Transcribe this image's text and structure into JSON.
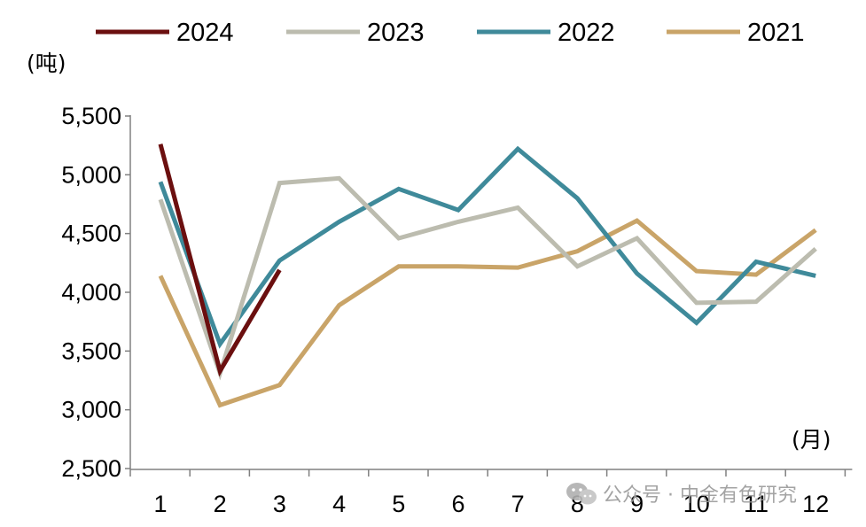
{
  "chart_data": {
    "type": "line",
    "title": "",
    "ylabel": "(吨)",
    "xlabel": "(月)",
    "x": [
      1,
      2,
      3,
      4,
      5,
      6,
      7,
      8,
      9,
      10,
      11,
      12
    ],
    "ylim": [
      2500,
      5500
    ],
    "yticks": [
      2500,
      3000,
      3500,
      4000,
      4500,
      5000,
      5500
    ],
    "ytick_labels": [
      "2,500",
      "3,000",
      "3,500",
      "4,000",
      "4,500",
      "5,000",
      "5,500"
    ],
    "grid": false,
    "legend_position": "top",
    "series": [
      {
        "name": "2024",
        "color": "#6b0f0f",
        "values": [
          5260,
          3330,
          4190,
          null,
          null,
          null,
          null,
          null,
          null,
          null,
          null,
          null
        ]
      },
      {
        "name": "2023",
        "color": "#bcbcaf",
        "values": [
          4790,
          3310,
          4930,
          4970,
          4460,
          4600,
          4720,
          4220,
          4460,
          3910,
          3920,
          4370
        ]
      },
      {
        "name": "2022",
        "color": "#3f8a9a",
        "values": [
          4940,
          3560,
          4270,
          4600,
          4880,
          4700,
          5220,
          4800,
          4160,
          3740,
          4260,
          4140
        ]
      },
      {
        "name": "2021",
        "color": "#c9a468",
        "values": [
          4140,
          3040,
          3210,
          3890,
          4220,
          4220,
          4210,
          4350,
          4610,
          4180,
          4150,
          4530
        ]
      }
    ]
  },
  "watermark": {
    "text": "公众号 · 中金有色研究",
    "icon": "wechat-icon"
  }
}
